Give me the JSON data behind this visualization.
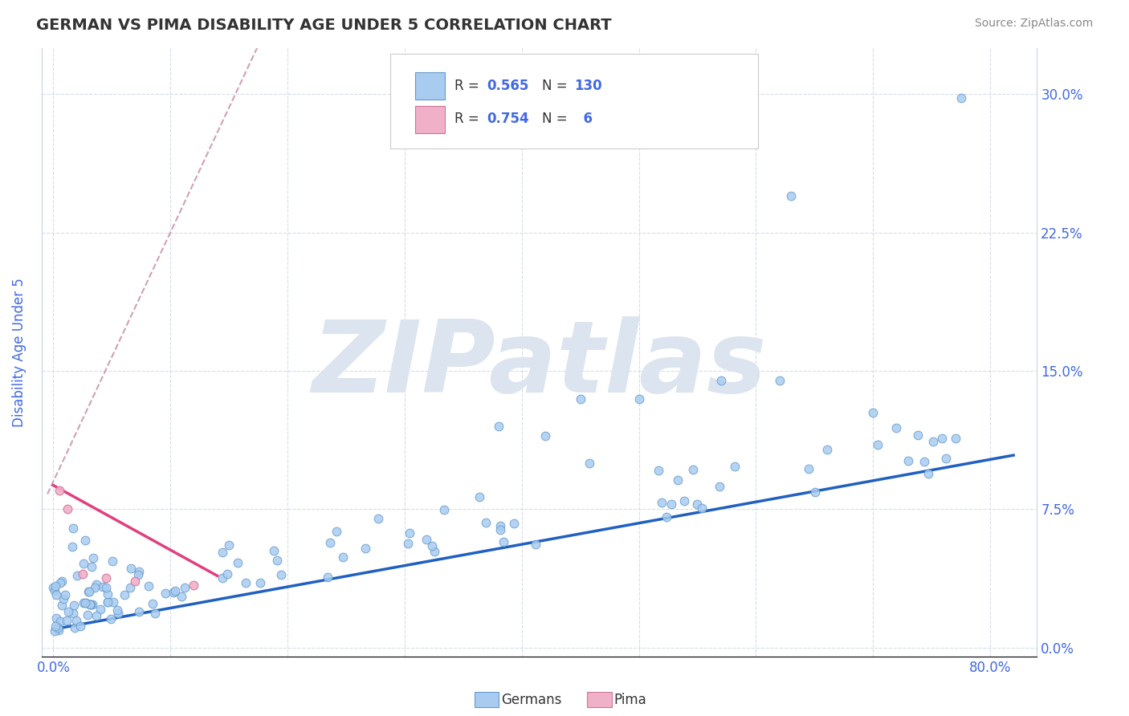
{
  "title": "GERMAN VS PIMA DISABILITY AGE UNDER 5 CORRELATION CHART",
  "source_text": "Source: ZipAtlas.com",
  "ylabel": "Disability Age Under 5",
  "x_ticks": [
    0.0,
    0.1,
    0.2,
    0.3,
    0.4,
    0.5,
    0.6,
    0.7,
    0.8
  ],
  "x_tick_labels": [
    "0.0%",
    "",
    "",
    "",
    "",
    "",
    "",
    "",
    "80.0%"
  ],
  "y_ticks": [
    0.0,
    0.075,
    0.15,
    0.225,
    0.3
  ],
  "y_tick_labels_left": [
    "",
    "",
    "",
    "",
    ""
  ],
  "y_tick_labels_right": [
    "0.0%",
    "7.5%",
    "15.0%",
    "22.5%",
    "30.0%"
  ],
  "xlim": [
    -0.01,
    0.84
  ],
  "ylim": [
    -0.005,
    0.325
  ],
  "R_color": "#4169e1",
  "title_color": "#333333",
  "axis_label_color": "#4169e1",
  "tick_color": "#4169e1",
  "watermark_text": "ZIPatlas",
  "watermark_color": "#dce4ef",
  "background_color": "#ffffff",
  "grid_color": "#c8d4e8",
  "scatter_german_color": "#a8ccf0",
  "scatter_german_edge": "#6699cc",
  "scatter_pima_color": "#f0b0c8",
  "scatter_pima_edge": "#cc7799",
  "trendline_german_color": "#2060c0",
  "trendline_pima_color": "#e04080",
  "trendline_pima_dashed_color": "#d0a0b8",
  "german_R": "0.565",
  "german_N": "130",
  "pima_R": "0.754",
  "pima_N": "  6",
  "legend_german_color": "#a8ccf0",
  "legend_pima_color": "#f0b0c8",
  "bottom_legend_german": "Germans",
  "bottom_legend_pima": "Pima"
}
